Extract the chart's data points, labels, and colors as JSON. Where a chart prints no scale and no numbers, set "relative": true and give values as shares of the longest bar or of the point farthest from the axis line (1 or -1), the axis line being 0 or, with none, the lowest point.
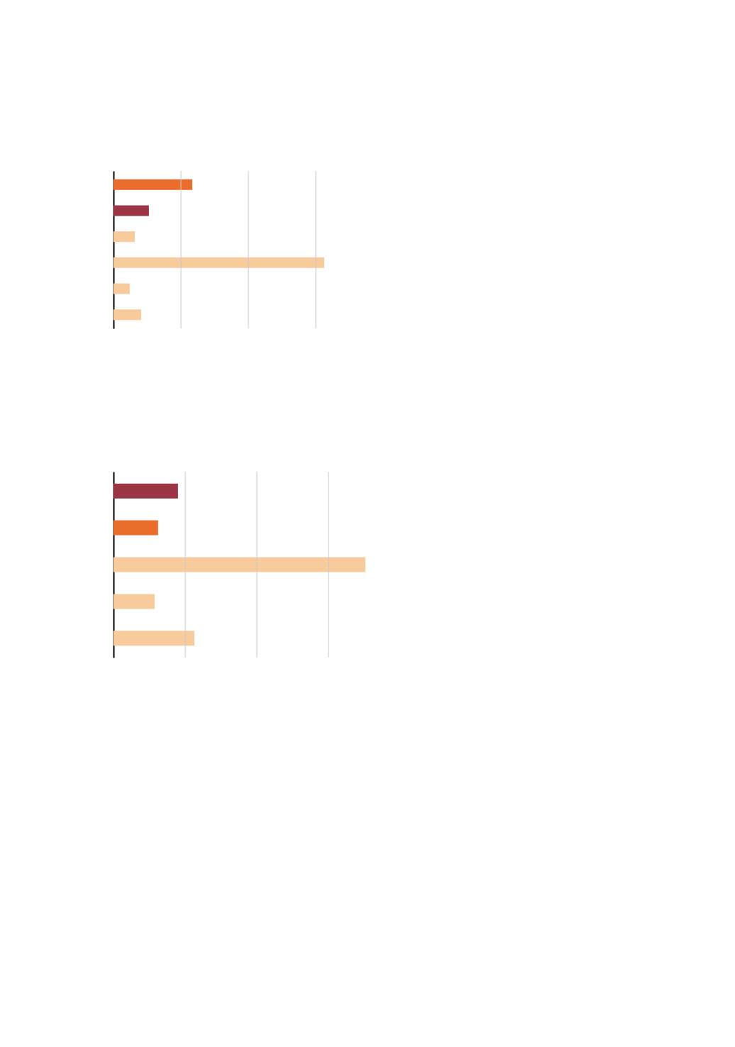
{
  "chart_data": [
    {
      "type": "bar",
      "orientation": "horizontal",
      "relative": true,
      "categories": [
        null,
        null,
        null,
        null,
        null,
        null
      ],
      "values": [
        0.374,
        0.168,
        0.101,
        1,
        0.077,
        0.131
      ],
      "colors": [
        "#eb6d2e",
        "#9c3647",
        "#f7cb9b",
        "#f7cb9b",
        "#f7cb9b",
        "#f7cb9b"
      ],
      "tick_labels": false,
      "ref_lines": [
        {
          "axis": "x",
          "value": 0.32,
          "color": "#c8c8c8"
        },
        {
          "axis": "x",
          "value": 0.64,
          "color": "#c8c8c8"
        },
        {
          "axis": "x",
          "value": 0.96,
          "color": "#c8c8c8"
        }
      ]
    },
    {
      "type": "bar",
      "orientation": "horizontal",
      "relative": true,
      "categories": [
        null,
        null,
        null,
        null,
        null
      ],
      "values": [
        0.256,
        0.177,
        1,
        0.163,
        0.321
      ],
      "colors": [
        "#9c3647",
        "#eb6d2e",
        "#f7cb9b",
        "#f7cb9b",
        "#f7cb9b"
      ],
      "tick_labels": false,
      "ref_lines": [
        {
          "axis": "x",
          "value": 0.285,
          "color": "#c8c8c8"
        },
        {
          "axis": "x",
          "value": 0.569,
          "color": "#c8c8c8"
        },
        {
          "axis": "x",
          "value": 0.854,
          "color": "#c8c8c8"
        }
      ]
    }
  ]
}
